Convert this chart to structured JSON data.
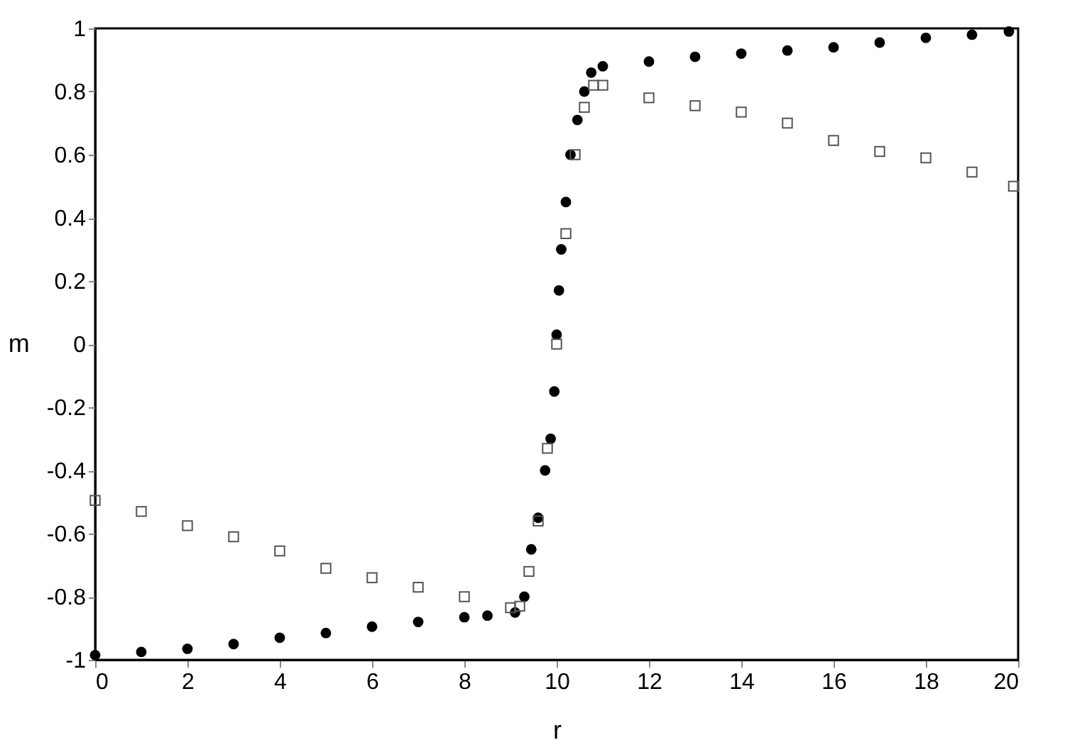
{
  "chart_data": {
    "type": "scatter",
    "xlabel": "r",
    "ylabel": "m",
    "xlim": [
      0,
      20
    ],
    "ylim": [
      -1,
      1
    ],
    "xticks": [
      0,
      2,
      4,
      6,
      8,
      10,
      12,
      14,
      16,
      18,
      20
    ],
    "yticks": [
      -1,
      -0.8,
      -0.6,
      -0.4,
      -0.2,
      0,
      0.2,
      0.4,
      0.6,
      0.8,
      1
    ],
    "grid": false,
    "series": [
      {
        "color": "#000000",
        "marker": "circle",
        "x": [
          0,
          1,
          2,
          3,
          4,
          5,
          6,
          7,
          8,
          8.5,
          9.1,
          9.3,
          9.45,
          9.6,
          9.75,
          9.87,
          9.95,
          10,
          10.05,
          10.1,
          10.2,
          10.3,
          10.45,
          10.6,
          10.75,
          11,
          12,
          13,
          14,
          15,
          16,
          17,
          18,
          19,
          19.8
        ],
        "values": [
          -0.985,
          -0.975,
          -0.965,
          -0.95,
          -0.93,
          -0.915,
          -0.895,
          -0.88,
          -0.865,
          -0.86,
          -0.85,
          -0.8,
          -0.65,
          -0.55,
          -0.4,
          -0.3,
          -0.15,
          0.03,
          0.17,
          0.3,
          0.45,
          0.6,
          0.71,
          0.8,
          0.86,
          0.88,
          0.895,
          0.91,
          0.92,
          0.93,
          0.94,
          0.955,
          0.97,
          0.98,
          0.99
        ]
      },
      {
        "color": "#555555",
        "marker": "square",
        "x": [
          0,
          1,
          2,
          3,
          4,
          5,
          6,
          7,
          8,
          9,
          9.2,
          9.4,
          9.6,
          9.8,
          10,
          10.2,
          10.4,
          10.6,
          10.8,
          11,
          12,
          13,
          14,
          15,
          16,
          17,
          18,
          19,
          19.9
        ],
        "values": [
          -0.495,
          -0.53,
          -0.575,
          -0.61,
          -0.655,
          -0.71,
          -0.74,
          -0.77,
          -0.8,
          -0.835,
          -0.83,
          -0.72,
          -0.56,
          -0.33,
          0,
          0.35,
          0.6,
          0.75,
          0.82,
          0.82,
          0.78,
          0.755,
          0.735,
          0.7,
          0.645,
          0.61,
          0.59,
          0.545,
          0.5
        ]
      }
    ]
  }
}
